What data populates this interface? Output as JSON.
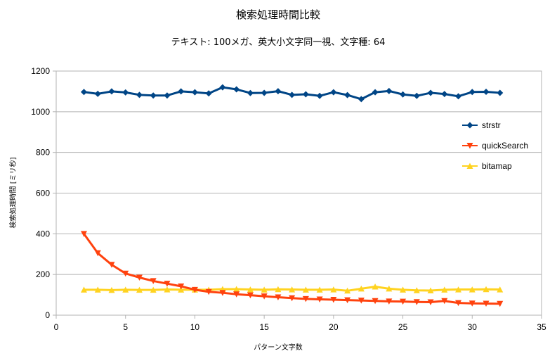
{
  "chart_data": {
    "type": "line",
    "title": "検索処理時間比較",
    "subtitle": "テキスト: 100メガ、英大小文字同一視、文字種: 64",
    "xlabel": "パターン文字数",
    "ylabel": "検索処理時間 [ミリ秒]",
    "xlim": [
      0,
      35
    ],
    "ylim": [
      0,
      1200
    ],
    "xticks": [
      "0",
      "5",
      "10",
      "15",
      "20",
      "25",
      "30",
      "35"
    ],
    "yticks": [
      "0",
      "200",
      "400",
      "600",
      "800",
      "1000",
      "1200"
    ],
    "grid": true,
    "legend_position": "right",
    "x": [
      2,
      3,
      4,
      5,
      6,
      7,
      8,
      9,
      10,
      11,
      12,
      13,
      14,
      15,
      16,
      17,
      18,
      19,
      20,
      21,
      22,
      23,
      24,
      25,
      26,
      27,
      28,
      29,
      30,
      31,
      32
    ],
    "series": [
      {
        "name": "strstr",
        "color": "#004586",
        "marker": "diamond",
        "values": [
          1097,
          1088,
          1100,
          1095,
          1083,
          1080,
          1080,
          1100,
          1096,
          1090,
          1120,
          1110,
          1092,
          1093,
          1101,
          1083,
          1086,
          1078,
          1096,
          1082,
          1062,
          1096,
          1102,
          1085,
          1078,
          1093,
          1087,
          1076,
          1097,
          1098,
          1093
        ]
      },
      {
        "name": "quickSearch",
        "color": "#ff420e",
        "marker": "triangle-down",
        "values": [
          400,
          305,
          248,
          205,
          185,
          168,
          155,
          142,
          125,
          115,
          110,
          103,
          98,
          93,
          88,
          84,
          80,
          78,
          76,
          74,
          72,
          70,
          68,
          67,
          65,
          64,
          70,
          60,
          58,
          57,
          56
        ]
      },
      {
        "name": "bitamap",
        "color": "#ffd320",
        "marker": "triangle-up",
        "values": [
          125,
          125,
          123,
          125,
          124,
          124,
          126,
          125,
          125,
          125,
          128,
          128,
          126,
          125,
          127,
          126,
          125,
          125,
          126,
          120,
          130,
          140,
          130,
          125,
          122,
          121,
          125,
          126,
          126,
          127,
          126
        ]
      }
    ]
  }
}
